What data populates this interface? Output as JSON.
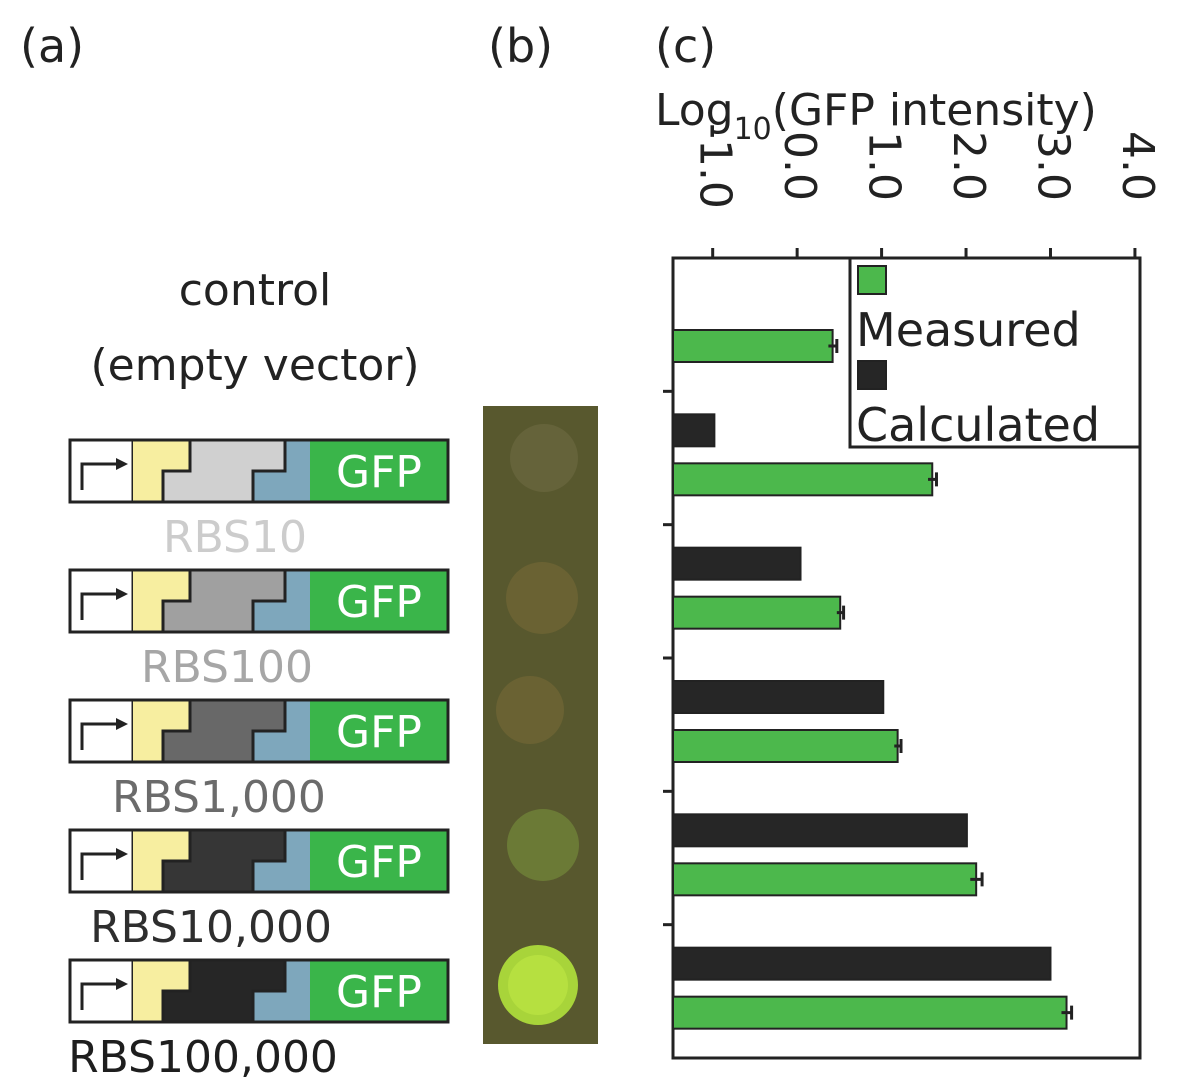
{
  "panels": {
    "a": {
      "label": "(a)",
      "control": [
        "control",
        "(empty vector)"
      ],
      "constructs": [
        {
          "gfp": "GFP",
          "label": "RBS10",
          "color": "#cccccc",
          "fill": "#d0d0d0"
        },
        {
          "gfp": "GFP",
          "label": "RBS100",
          "color": "#a6a6a6",
          "fill": "#a0a0a0"
        },
        {
          "gfp": "GFP",
          "label": "RBS1,000",
          "color": "#6b6b6b",
          "fill": "#686868"
        },
        {
          "gfp": "GFP",
          "label": "RBS10,000",
          "color": "#2e2e2e",
          "fill": "#363636"
        },
        {
          "gfp": "GFP",
          "label": "RBS100,000",
          "color": "#1e1e1e",
          "fill": "#262626"
        }
      ]
    },
    "b": {
      "label": "(b)"
    },
    "c": {
      "label": "(c)"
    }
  },
  "chart_data": {
    "type": "bar",
    "orientation": "horizontal",
    "x_label_parts": [
      "Log",
      "10",
      "(GFP intensity)"
    ],
    "categories": [
      null,
      null,
      null,
      null,
      null,
      null
    ],
    "series": [
      {
        "name": "Calculated",
        "color": "#262626",
        "values": [
          null,
          -0.98,
          0.04,
          1.02,
          2.01,
          3.0
        ]
      },
      {
        "name": "Measured",
        "color": "#4cb84c",
        "values": [
          0.42,
          1.6,
          0.51,
          1.19,
          2.12,
          3.19
        ],
        "errors": [
          0.05,
          0.05,
          0.04,
          0.04,
          0.07,
          0.06
        ]
      }
    ],
    "xlim": [
      -1.47,
      4.06
    ],
    "xticks": [
      {
        "value": -1,
        "label": "-1.0"
      },
      {
        "value": 0,
        "label": "0.0"
      },
      {
        "value": 1,
        "label": "1.0"
      },
      {
        "value": 2,
        "label": "2.0"
      },
      {
        "value": 3,
        "label": "3.0"
      },
      {
        "value": 4,
        "label": "4.0"
      }
    ],
    "legend": "top-right"
  }
}
